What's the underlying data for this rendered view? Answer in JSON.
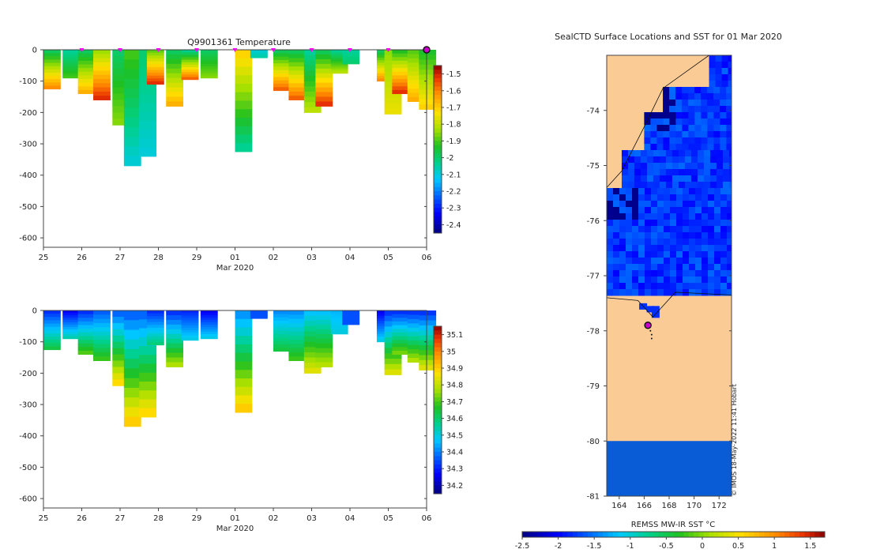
{
  "chart_data": [
    {
      "type": "heatmap",
      "title": "Q9901361  Temperature",
      "xlabel": "Mar 2020",
      "ylabel": "",
      "x_tick_labels": [
        "25",
        "26",
        "27",
        "28",
        "29",
        "01",
        "02",
        "03",
        "04",
        "05",
        "06"
      ],
      "y_tick_labels": [
        "0",
        "-100",
        "-200",
        "-300",
        "-400",
        "-500",
        "-600"
      ],
      "y_ticks": [
        0,
        -100,
        -200,
        -300,
        -400,
        -500,
        -600
      ],
      "ylim": [
        -630,
        0
      ],
      "colorbar_label": "",
      "colorbar_ticks": [
        "-1.5",
        "-1.6",
        "-1.7",
        "-1.8",
        "-1.9",
        "-2",
        "-2.1",
        "-2.2",
        "-2.3",
        "-2.4"
      ],
      "colorbar_values": [
        -1.5,
        -1.6,
        -1.7,
        -1.8,
        -1.9,
        -2.0,
        -2.1,
        -2.2,
        -2.3,
        -2.4
      ],
      "crange": [
        -2.45,
        -1.45
      ],
      "station_markers_x_days": [
        1,
        2,
        3,
        4,
        5,
        6,
        7,
        8,
        9,
        10
      ],
      "profiles": [
        {
          "day": 0.0,
          "max_depth": 125,
          "surface": -2.0,
          "deep": -1.6
        },
        {
          "day": 0.5,
          "max_depth": 90,
          "surface": -2.05,
          "deep": -1.9
        },
        {
          "day": 0.9,
          "max_depth": 140,
          "surface": -2.0,
          "deep": -1.65
        },
        {
          "day": 1.3,
          "max_depth": 160,
          "surface": -1.85,
          "deep": -1.5
        },
        {
          "day": 1.8,
          "max_depth": 240,
          "surface": -2.0,
          "deep": -1.85
        },
        {
          "day": 2.1,
          "max_depth": 370,
          "surface": -1.9,
          "deep": -2.1
        },
        {
          "day": 2.5,
          "max_depth": 340,
          "surface": -2.0,
          "deep": -2.1
        },
        {
          "day": 2.7,
          "max_depth": 110,
          "surface": -1.9,
          "deep": -1.5
        },
        {
          "day": 3.2,
          "max_depth": 180,
          "surface": -2.0,
          "deep": -1.65
        },
        {
          "day": 3.6,
          "max_depth": 95,
          "surface": -2.05,
          "deep": -1.55
        },
        {
          "day": 4.1,
          "max_depth": 90,
          "surface": -2.0,
          "deep": -1.85
        },
        {
          "day": 5.0,
          "max_depth": 325,
          "surface": -1.7,
          "deep": -2.05
        },
        {
          "day": 5.4,
          "max_depth": 25,
          "surface": -2.1,
          "deep": -2.05
        },
        {
          "day": 6.0,
          "max_depth": 130,
          "surface": -2.0,
          "deep": -1.55
        },
        {
          "day": 6.4,
          "max_depth": 160,
          "surface": -2.0,
          "deep": -1.55
        },
        {
          "day": 6.8,
          "max_depth": 200,
          "surface": -2.05,
          "deep": -1.8
        },
        {
          "day": 7.1,
          "max_depth": 180,
          "surface": -2.0,
          "deep": -1.5
        },
        {
          "day": 7.5,
          "max_depth": 75,
          "surface": -2.05,
          "deep": -1.8
        },
        {
          "day": 7.8,
          "max_depth": 45,
          "surface": -2.05,
          "deep": -2.0
        },
        {
          "day": 8.7,
          "max_depth": 100,
          "surface": -2.0,
          "deep": -1.6
        },
        {
          "day": 8.9,
          "max_depth": 205,
          "surface": -1.85,
          "deep": -1.75
        },
        {
          "day": 9.1,
          "max_depth": 140,
          "surface": -1.95,
          "deep": -1.5
        },
        {
          "day": 9.5,
          "max_depth": 165,
          "surface": -1.9,
          "deep": -1.65
        },
        {
          "day": 9.8,
          "max_depth": 190,
          "surface": -1.95,
          "deep": -1.7
        }
      ]
    },
    {
      "type": "heatmap",
      "title": "",
      "xlabel": "Mar 2020",
      "ylabel": "",
      "x_tick_labels": [
        "25",
        "26",
        "27",
        "28",
        "29",
        "01",
        "02",
        "03",
        "04",
        "05",
        "06"
      ],
      "y_tick_labels": [
        "0",
        "-100",
        "-200",
        "-300",
        "-400",
        "-500",
        "-600"
      ],
      "y_ticks": [
        0,
        -100,
        -200,
        -300,
        -400,
        -500,
        -600
      ],
      "ylim": [
        -630,
        0
      ],
      "colorbar_label": "",
      "colorbar_ticks": [
        "35.1",
        "35",
        "34.9",
        "34.8",
        "34.7",
        "34.6",
        "34.5",
        "34.4",
        "34.3",
        "34.2"
      ],
      "colorbar_values": [
        35.1,
        35.0,
        34.9,
        34.8,
        34.7,
        34.6,
        34.5,
        34.4,
        34.3,
        34.2
      ],
      "crange": [
        34.15,
        35.15
      ],
      "profiles": [
        {
          "day": 0.0,
          "max_depth": 125,
          "surface": 34.3,
          "deep": 34.65
        },
        {
          "day": 0.5,
          "max_depth": 90,
          "surface": 34.25,
          "deep": 34.55
        },
        {
          "day": 0.9,
          "max_depth": 140,
          "surface": 34.3,
          "deep": 34.72
        },
        {
          "day": 1.3,
          "max_depth": 160,
          "surface": 34.35,
          "deep": 34.7
        },
        {
          "day": 1.8,
          "max_depth": 240,
          "surface": 34.35,
          "deep": 34.9
        },
        {
          "day": 2.1,
          "max_depth": 370,
          "surface": 34.35,
          "deep": 34.92
        },
        {
          "day": 2.5,
          "max_depth": 340,
          "surface": 34.35,
          "deep": 34.9
        },
        {
          "day": 2.7,
          "max_depth": 110,
          "surface": 34.3,
          "deep": 34.6
        },
        {
          "day": 3.2,
          "max_depth": 180,
          "surface": 34.3,
          "deep": 34.8
        },
        {
          "day": 3.6,
          "max_depth": 95,
          "surface": 34.3,
          "deep": 34.5
        },
        {
          "day": 4.1,
          "max_depth": 90,
          "surface": 34.25,
          "deep": 34.5
        },
        {
          "day": 5.0,
          "max_depth": 325,
          "surface": 34.4,
          "deep": 34.92
        },
        {
          "day": 5.4,
          "max_depth": 25,
          "surface": 34.35,
          "deep": 34.35
        },
        {
          "day": 6.0,
          "max_depth": 130,
          "surface": 34.4,
          "deep": 34.65
        },
        {
          "day": 6.4,
          "max_depth": 160,
          "surface": 34.4,
          "deep": 34.7
        },
        {
          "day": 6.8,
          "max_depth": 200,
          "surface": 34.45,
          "deep": 34.85
        },
        {
          "day": 7.1,
          "max_depth": 180,
          "surface": 34.45,
          "deep": 34.8
        },
        {
          "day": 7.5,
          "max_depth": 75,
          "surface": 34.45,
          "deep": 34.5
        },
        {
          "day": 7.8,
          "max_depth": 45,
          "surface": 34.35,
          "deep": 34.35
        },
        {
          "day": 8.7,
          "max_depth": 100,
          "surface": 34.25,
          "deep": 34.5
        },
        {
          "day": 8.9,
          "max_depth": 205,
          "surface": 34.3,
          "deep": 34.85
        },
        {
          "day": 9.1,
          "max_depth": 140,
          "surface": 34.3,
          "deep": 34.75
        },
        {
          "day": 9.5,
          "max_depth": 165,
          "surface": 34.3,
          "deep": 34.8
        },
        {
          "day": 9.8,
          "max_depth": 190,
          "surface": 34.3,
          "deep": 34.85
        }
      ]
    },
    {
      "type": "heatmap",
      "title": "SealCTD Surface Locations and SST for 01 Mar 2020",
      "xlabel": "",
      "ylabel": "",
      "x_tick_labels": [
        "164",
        "166",
        "168",
        "170",
        "172"
      ],
      "x_ticks": [
        164,
        166,
        168,
        170,
        172
      ],
      "xlim": [
        163,
        173
      ],
      "y_tick_labels": [
        "-74",
        "-75",
        "-76",
        "-77",
        "-78",
        "-79",
        "-80",
        "-81"
      ],
      "y_ticks": [
        -74,
        -75,
        -76,
        -77,
        -78,
        -79,
        -80,
        -81
      ],
      "ylim": [
        -81,
        -73
      ],
      "colorbar_label": "REMSS MW-IR SST °C",
      "colorbar_ticks": [
        "-2.5",
        "-2",
        "-1.5",
        "-1",
        "-0.5",
        "0",
        "0.5",
        "1",
        "1.5"
      ],
      "colorbar_values": [
        -2.5,
        -2,
        -1.5,
        -1,
        -0.5,
        0,
        0.5,
        1,
        1.5
      ],
      "crange": [
        -2.5,
        1.7
      ],
      "land_color": "#fbcb96",
      "fill_value_band": {
        "lat_from": -81,
        "lat_to": -80,
        "color": "#0a5bd6"
      },
      "seal_position": {
        "lon": 166.3,
        "lat": -77.9
      },
      "track_points": [
        {
          "lon": 166.5,
          "lat": -78.0
        },
        {
          "lon": 166.6,
          "lat": -78.07
        },
        {
          "lon": 166.6,
          "lat": -78.14
        }
      ],
      "watermark": "© IMOS 18-May-2022 11:41 Hobart"
    }
  ]
}
